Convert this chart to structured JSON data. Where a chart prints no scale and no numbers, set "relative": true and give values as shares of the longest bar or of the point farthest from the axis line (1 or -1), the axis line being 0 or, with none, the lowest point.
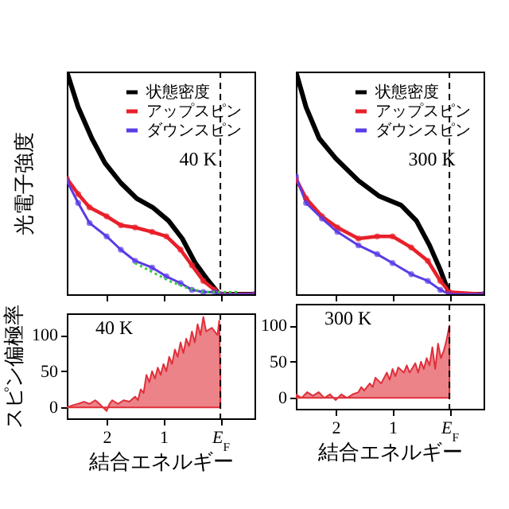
{
  "chart_data": [
    {
      "type": "line",
      "ylabel": "光電子強度",
      "relative": true,
      "xlim": [
        2.7,
        -0.6
      ],
      "xticks": [
        2,
        1,
        0
      ],
      "tick_labels": false,
      "legend": "top right",
      "annotations": [
        "40 K"
      ],
      "ref_lines": [
        {
          "axis": "x",
          "value": 0,
          "color": "#000000",
          "line_style": "dashed"
        }
      ],
      "series": [
        {
          "name": "状態密度",
          "color": "#000000",
          "marker": "none",
          "x": [
            2.7,
            2.5,
            2.26,
            2.03,
            1.75,
            1.47,
            1.19,
            0.91,
            0.67,
            0.44,
            0.21,
            0.02,
            -0.6
          ],
          "values": [
            1.0,
            0.84,
            0.7,
            0.59,
            0.5,
            0.43,
            0.39,
            0.33,
            0.25,
            0.14,
            0.06,
            0,
            0
          ]
        },
        {
          "name": "アップスピン",
          "color": "#e8202a",
          "marker": "circle",
          "x": [
            2.7,
            2.5,
            2.3,
            2.0,
            1.75,
            1.5,
            1.2,
            0.95,
            0.7,
            0.5,
            0.3,
            0.1,
            0,
            -0.6
          ],
          "values": [
            0.52,
            0.45,
            0.39,
            0.35,
            0.31,
            0.3,
            0.28,
            0.26,
            0.2,
            0.13,
            0.06,
            0.02,
            0,
            0
          ]
        },
        {
          "name": "ダウンスピン",
          "color": "#5a3ce6",
          "marker": "circle",
          "x": [
            2.7,
            2.5,
            2.3,
            2.0,
            1.75,
            1.5,
            1.2,
            0.95,
            0.7,
            0.5,
            0.3,
            0.1,
            0,
            -0.6
          ],
          "values": [
            0.51,
            0.41,
            0.32,
            0.26,
            0.2,
            0.15,
            0.12,
            0.08,
            0.05,
            0.02,
            0.01,
            0.01,
            0,
            0
          ]
        },
        {
          "color": "#33cc33",
          "marker": "none",
          "line_style": "dotted",
          "x": [
            1.5,
            1.2,
            0.9,
            0.6,
            0.3,
            0.0,
            -0.3
          ],
          "values": [
            0.14,
            0.1,
            0.06,
            0.03,
            0.01,
            0.01,
            0.01
          ]
        }
      ]
    },
    {
      "type": "line",
      "relative": true,
      "xlim": [
        2.7,
        -0.6
      ],
      "xticks": [
        2,
        1,
        0
      ],
      "tick_labels": false,
      "legend": "top right",
      "annotations": [
        "300 K"
      ],
      "ref_lines": [
        {
          "axis": "x",
          "value": 0,
          "color": "#000000",
          "line_style": "dashed"
        }
      ],
      "series": [
        {
          "name": "状態密度",
          "color": "#000000",
          "marker": "none",
          "x": [
            2.7,
            2.52,
            2.29,
            2.0,
            1.6,
            1.23,
            0.85,
            0.58,
            0.35,
            0.16,
            0,
            -0.6
          ],
          "values": [
            1.0,
            0.84,
            0.7,
            0.61,
            0.51,
            0.44,
            0.4,
            0.33,
            0.22,
            0.11,
            0,
            0
          ]
        },
        {
          "name": "アップスピン",
          "color": "#e8202a",
          "marker": "circle",
          "x": [
            2.7,
            2.52,
            2.24,
            1.97,
            1.6,
            1.27,
            1.0,
            0.67,
            0.38,
            0.16,
            0,
            -0.6
          ],
          "values": [
            0.52,
            0.43,
            0.35,
            0.3,
            0.25,
            0.26,
            0.26,
            0.21,
            0.15,
            0.06,
            0.01,
            0
          ]
        },
        {
          "name": "ダウンスピン",
          "color": "#5a3ce6",
          "marker": "circle",
          "x": [
            2.7,
            2.52,
            2.24,
            1.97,
            1.6,
            1.27,
            1.0,
            0.67,
            0.38,
            0.16,
            0,
            -0.6
          ],
          "values": [
            0.53,
            0.41,
            0.34,
            0.28,
            0.22,
            0.18,
            0.14,
            0.09,
            0.06,
            0.02,
            0,
            0
          ]
        }
      ]
    },
    {
      "type": "area",
      "ylabel": "スピン偏極率",
      "xlabel": "結合エネルギー",
      "xlim": [
        2.7,
        -0.6
      ],
      "ylim": [
        -15,
        130
      ],
      "yticks": [
        0,
        50,
        100
      ],
      "xticks": [
        2,
        1,
        {
          "value": 0,
          "label": "E$_{F}$"
        }
      ],
      "annotations": [
        "40 K"
      ],
      "ref_lines": [
        {
          "axis": "x",
          "value": 0,
          "color": "#000000",
          "line_style": "dashed"
        }
      ],
      "series": [
        {
          "color": "#e0303a",
          "x": [
            2.7,
            2.6,
            2.5,
            2.4,
            2.3,
            2.2,
            2.1,
            2.0,
            1.95,
            1.9,
            1.8,
            1.7,
            1.6,
            1.5,
            1.45,
            1.4,
            1.35,
            1.3,
            1.25,
            1.2,
            1.15,
            1.1,
            1.05,
            1.0,
            0.95,
            0.9,
            0.85,
            0.8,
            0.75,
            0.7,
            0.65,
            0.6,
            0.55,
            0.5,
            0.45,
            0.4,
            0.35,
            0.3,
            0.25,
            0.15,
            0.05,
            0.02,
            0.0
          ],
          "values": [
            0,
            3,
            5,
            8,
            5,
            10,
            3,
            -5,
            5,
            10,
            5,
            10,
            8,
            15,
            10,
            25,
            20,
            45,
            35,
            50,
            40,
            55,
            45,
            60,
            50,
            70,
            60,
            80,
            70,
            90,
            75,
            95,
            85,
            105,
            90,
            115,
            100,
            125,
            105,
            110,
            100,
            120,
            40
          ]
        }
      ]
    },
    {
      "type": "area",
      "xlabel": "結合エネルギー",
      "xlim": [
        2.7,
        -0.6
      ],
      "ylim": [
        -15,
        130
      ],
      "yticks": [
        0,
        50,
        100
      ],
      "xticks": [
        2,
        1,
        {
          "value": 0,
          "label": "E$_{F}$"
        }
      ],
      "annotations": [
        "300 K"
      ],
      "ref_lines": [
        {
          "axis": "x",
          "value": 0,
          "color": "#000000",
          "line_style": "dashed"
        }
      ],
      "series": [
        {
          "color": "#e0303a",
          "x": [
            2.7,
            2.6,
            2.5,
            2.4,
            2.3,
            2.2,
            2.1,
            2.0,
            1.9,
            1.8,
            1.7,
            1.6,
            1.55,
            1.5,
            1.4,
            1.35,
            1.3,
            1.2,
            1.1,
            1.05,
            1.0,
            0.95,
            0.9,
            0.8,
            0.75,
            0.7,
            0.6,
            0.55,
            0.5,
            0.45,
            0.4,
            0.35,
            0.3,
            0.25,
            0.2,
            0.15,
            0.1,
            0.05,
            0.0
          ],
          "values": [
            5,
            0,
            8,
            3,
            8,
            0,
            5,
            -3,
            5,
            0,
            5,
            8,
            15,
            10,
            20,
            15,
            28,
            20,
            35,
            25,
            40,
            30,
            42,
            35,
            45,
            35,
            48,
            35,
            50,
            40,
            55,
            45,
            70,
            40,
            75,
            55,
            65,
            80,
            100
          ]
        }
      ]
    }
  ]
}
